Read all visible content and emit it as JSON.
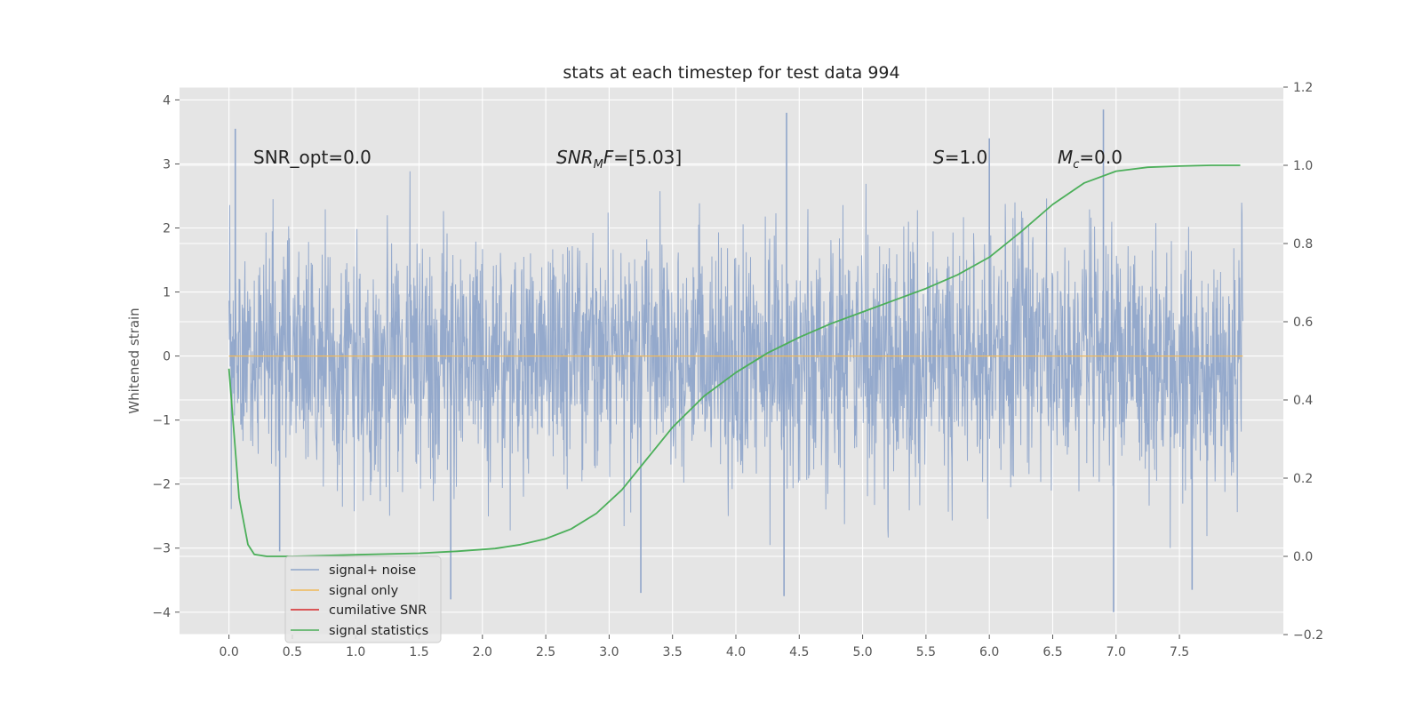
{
  "chart_data": {
    "type": "line",
    "title": "stats at each timestep for test data 994",
    "ylabel": "Whitened strain",
    "y2label": "",
    "xlim": [
      -0.39,
      8.32
    ],
    "ylim": [
      -4.35,
      4.2
    ],
    "y2lim": [
      -0.2,
      1.2
    ],
    "xticks": [
      0.0,
      0.5,
      1.0,
      1.5,
      2.0,
      2.5,
      3.0,
      3.5,
      4.0,
      4.5,
      5.0,
      5.5,
      6.0,
      6.5,
      7.0,
      7.5
    ],
    "yticks": [
      -4,
      -3,
      -2,
      -1,
      0,
      1,
      2,
      3,
      4
    ],
    "y2ticks": [
      -0.2,
      0.0,
      0.2,
      0.4,
      0.6,
      0.8,
      1.0,
      1.2
    ],
    "grid": true,
    "legend_position": "lower-left",
    "annotations": {
      "snr_opt": "SNR_opt=0.0",
      "snr_mf_base": "SNR",
      "snr_mf_sub": "M",
      "snr_mf_f": "F",
      "snr_mf_value": "=[5.03]",
      "s_symbol": "S",
      "s_value": "=1.0",
      "mc_symbol": "M",
      "mc_sub": "c",
      "mc_value": "=0.0"
    },
    "series": [
      {
        "name": "signal+ noise",
        "color": "#8fa5ca",
        "axis": "left",
        "x_range": [
          0.0,
          8.0
        ],
        "y_range": [
          -4.0,
          3.85
        ],
        "peaks": [
          {
            "x": 0.05,
            "y": 3.55
          },
          {
            "x": 0.4,
            "y": -3.05
          },
          {
            "x": 1.75,
            "y": -3.8
          },
          {
            "x": 3.25,
            "y": -3.7
          },
          {
            "x": 4.4,
            "y": 3.8
          },
          {
            "x": 4.38,
            "y": -3.75
          },
          {
            "x": 6.0,
            "y": 3.4
          },
          {
            "x": 6.9,
            "y": 3.85
          },
          {
            "x": 6.98,
            "y": -4.0
          },
          {
            "x": 7.6,
            "y": -3.65
          }
        ]
      },
      {
        "name": "signal only",
        "color": "#f0b95a",
        "axis": "left",
        "x": [
          0.0,
          8.0
        ],
        "y": [
          0.0,
          0.0
        ]
      },
      {
        "name": "cumilative SNR",
        "color": "#d62728",
        "axis": "left",
        "x": [],
        "y": []
      },
      {
        "name": "signal statistics",
        "color": "#4caf5a",
        "axis": "right",
        "x": [
          0.0,
          0.08,
          0.15,
          0.2,
          0.3,
          0.5,
          1.0,
          1.5,
          1.8,
          2.1,
          2.3,
          2.5,
          2.7,
          2.9,
          3.1,
          3.3,
          3.5,
          3.75,
          4.0,
          4.25,
          4.5,
          4.75,
          5.0,
          5.25,
          5.5,
          5.75,
          6.0,
          6.25,
          6.5,
          6.75,
          7.0,
          7.25,
          7.5,
          7.75,
          7.98
        ],
        "y": [
          0.48,
          0.15,
          0.03,
          0.005,
          0.0,
          0.0,
          0.004,
          0.008,
          0.013,
          0.02,
          0.03,
          0.045,
          0.07,
          0.11,
          0.17,
          0.25,
          0.33,
          0.41,
          0.47,
          0.52,
          0.56,
          0.595,
          0.625,
          0.655,
          0.685,
          0.72,
          0.765,
          0.83,
          0.9,
          0.955,
          0.985,
          0.995,
          0.998,
          1.0,
          1.0
        ]
      }
    ]
  }
}
